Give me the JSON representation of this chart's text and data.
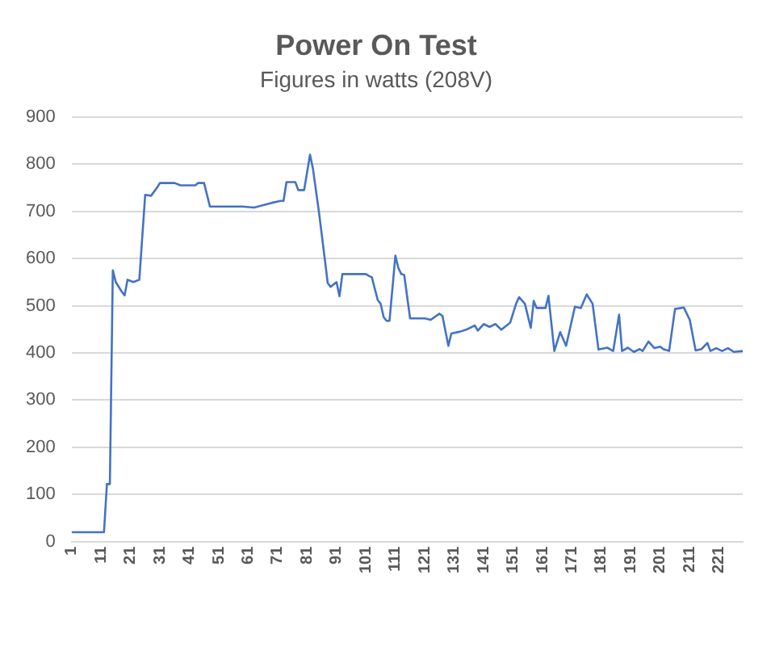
{
  "chart_data": {
    "type": "line",
    "title": "Power On Test",
    "subtitle": "Figures in watts (208V)",
    "x": [
      1,
      12,
      13,
      14,
      15,
      16,
      18,
      19,
      20,
      22,
      24,
      26,
      28,
      30,
      31,
      36,
      38,
      43,
      44,
      46,
      48,
      59,
      63,
      69,
      72,
      73,
      74,
      77,
      78,
      80,
      82,
      83,
      85,
      87,
      88,
      89,
      91,
      92,
      93,
      101,
      102,
      103,
      105,
      106,
      107,
      108,
      109,
      111,
      112,
      113,
      114,
      116,
      121,
      123,
      126,
      127,
      129,
      130,
      133,
      135,
      138,
      139,
      141,
      143,
      145,
      147,
      150,
      152,
      153,
      155,
      157,
      158,
      159,
      162,
      163,
      165,
      167,
      169,
      172,
      174,
      176,
      178,
      180,
      183,
      185,
      187,
      188,
      190,
      192,
      194,
      195,
      197,
      199,
      201,
      202,
      204,
      206,
      209,
      211,
      213,
      215,
      217,
      218,
      220,
      222,
      224,
      226,
      229
    ],
    "series": [
      {
        "color": "#4472c4",
        "values": [
          20,
          20,
          122,
          122,
          575,
          550,
          530,
          522,
          555,
          550,
          555,
          735,
          733,
          750,
          760,
          760,
          755,
          755,
          760,
          760,
          710,
          710,
          708,
          718,
          722,
          722,
          762,
          762,
          745,
          745,
          820,
          790,
          700,
          600,
          548,
          540,
          550,
          520,
          567,
          567,
          563,
          560,
          512,
          504,
          476,
          468,
          468,
          606,
          580,
          567,
          565,
          473,
          473,
          470,
          483,
          478,
          415,
          441,
          445,
          449,
          458,
          447,
          461,
          455,
          461,
          449,
          464,
          504,
          518,
          504,
          453,
          510,
          495,
          495,
          521,
          404,
          444,
          415,
          498,
          495,
          524,
          504,
          407,
          411,
          404,
          481,
          404,
          411,
          402,
          408,
          404,
          424,
          410,
          413,
          408,
          404,
          493,
          496,
          470,
          405,
          408,
          421,
          404,
          410,
          404,
          410,
          402,
          404
        ]
      }
    ],
    "xlim": [
      1,
      229
    ],
    "xticks": [
      1,
      11,
      21,
      31,
      41,
      51,
      61,
      71,
      81,
      91,
      101,
      111,
      121,
      131,
      141,
      151,
      161,
      171,
      181,
      191,
      201,
      211,
      221
    ],
    "ylim": [
      0,
      900
    ],
    "yticks": [
      0,
      100,
      200,
      300,
      400,
      500,
      600,
      700,
      800,
      900
    ],
    "grid": "y",
    "marker": "none",
    "line_style": "solid",
    "legend": false
  }
}
